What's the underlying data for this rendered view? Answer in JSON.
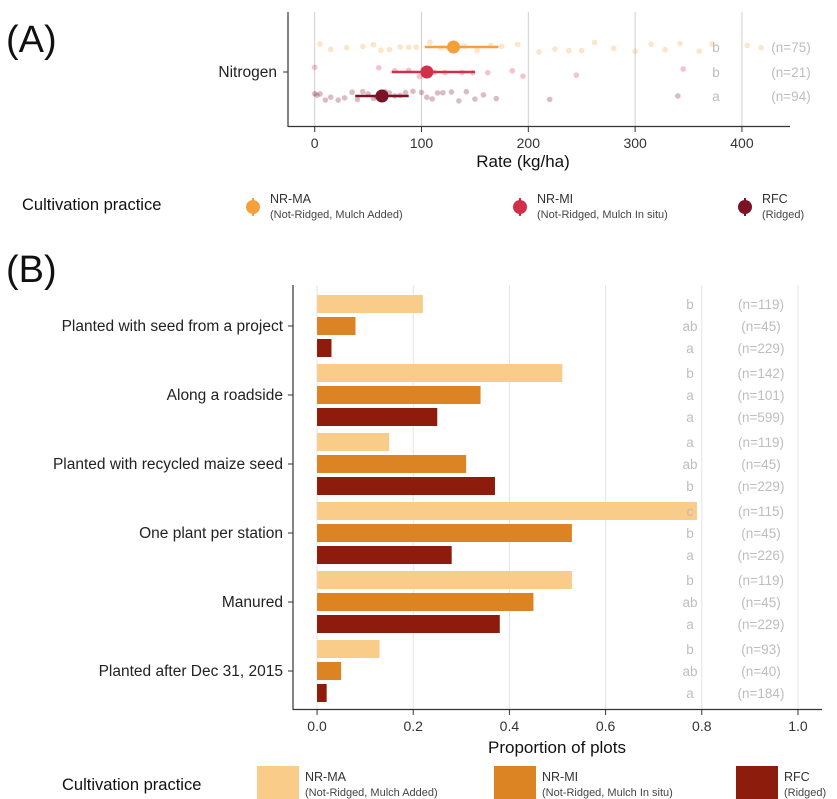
{
  "chart_data": [
    {
      "panel": "(A)",
      "type": "scatter",
      "xlabel": "Rate (kg/ha)",
      "xlim": [
        -25,
        445
      ],
      "xticks": [
        0,
        100,
        200,
        300,
        400
      ],
      "categories": [
        "Nitrogen"
      ],
      "grid": "vertical",
      "series": [
        {
          "name": "NR-MA",
          "color": "#f5a03a",
          "mean": 130,
          "ci": [
            103,
            172
          ],
          "letter": "b",
          "n_label": "(n=75)",
          "points": [
            5,
            15,
            30,
            45,
            55,
            62,
            70,
            80,
            88,
            95,
            108,
            118,
            125,
            140,
            152,
            165,
            175,
            190,
            210,
            225,
            238,
            250,
            262,
            280,
            300,
            315,
            328,
            342,
            360,
            372,
            405,
            418
          ]
        },
        {
          "name": "NR-MI",
          "color": "#d2304a",
          "mean": 105,
          "ci": [
            72,
            150
          ],
          "letter": "b",
          "n_label": "(n=21)",
          "points": [
            0,
            60,
            75,
            88,
            98,
            112,
            122,
            138,
            148,
            162,
            185,
            195,
            245,
            345
          ]
        },
        {
          "name": "RFC",
          "color": "#7b1226",
          "mean": 63,
          "ci": [
            38,
            88
          ],
          "letter": "a",
          "n_label": "(n=94)",
          "points": [
            0,
            2,
            5,
            10,
            15,
            22,
            28,
            35,
            40,
            45,
            50,
            55,
            58,
            62,
            66,
            70,
            75,
            80,
            85,
            92,
            100,
            105,
            110,
            115,
            120,
            128,
            135,
            142,
            150,
            158,
            170,
            220,
            340
          ]
        }
      ],
      "legend": {
        "title": "Cultivation practice",
        "position": "bottom",
        "items": [
          {
            "label": "NR-MA",
            "sub": "(Not-Ridged, Mulch Added)",
            "color": "#f5a03a"
          },
          {
            "label": "NR-MI",
            "sub": "(Not-Ridged, Mulch In situ)",
            "color": "#d2304a"
          },
          {
            "label": "RFC",
            "sub": "(Ridged)",
            "color": "#7b1226"
          }
        ]
      }
    },
    {
      "panel": "(B)",
      "type": "bar",
      "orientation": "horizontal",
      "xlabel": "Proportion of plots",
      "xlim": [
        -0.05,
        1.05
      ],
      "xticks": [
        "0.0",
        "0.2",
        "0.4",
        "0.6",
        "0.8",
        "1.0"
      ],
      "grid": "vertical",
      "categories": [
        "Planted with seed from a project",
        "Along a roadside",
        "Planted with recycled maize seed",
        "One plant per station",
        "Manured",
        "Planted after Dec 31, 2015"
      ],
      "series": [
        {
          "name": "NR-MA",
          "color": "#f9cc89",
          "values": [
            0.22,
            0.51,
            0.15,
            0.79,
            0.53,
            0.13
          ],
          "letters": [
            "b",
            "b",
            "a",
            "c",
            "b",
            "b"
          ],
          "n_labels": [
            "(n=119)",
            "(n=142)",
            "(n=119)",
            "(n=115)",
            "(n=119)",
            "(n=93)"
          ]
        },
        {
          "name": "NR-MI",
          "color": "#dc8424",
          "values": [
            0.08,
            0.34,
            0.31,
            0.53,
            0.45,
            0.05
          ],
          "letters": [
            "ab",
            "a",
            "ab",
            "b",
            "ab",
            "ab"
          ],
          "n_labels": [
            "(n=45)",
            "(n=101)",
            "(n=45)",
            "(n=45)",
            "(n=45)",
            "(n=40)"
          ]
        },
        {
          "name": "RFC",
          "color": "#8e1c0c",
          "values": [
            0.03,
            0.25,
            0.37,
            0.28,
            0.38,
            0.02
          ],
          "letters": [
            "a",
            "a",
            "b",
            "a",
            "a",
            "a"
          ],
          "n_labels": [
            "(n=229)",
            "(n=599)",
            "(n=229)",
            "(n=226)",
            "(n=229)",
            "(n=184)"
          ]
        }
      ],
      "legend": {
        "title": "Cultivation practice",
        "position": "bottom",
        "items": [
          {
            "label": "NR-MA",
            "sub": "(Not-Ridged, Mulch Added)",
            "color": "#f9cc89"
          },
          {
            "label": "NR-MI",
            "sub": "(Not-Ridged, Mulch In situ)",
            "color": "#dc8424"
          },
          {
            "label": "RFC",
            "sub": "(Ridged)",
            "color": "#8e1c0c"
          }
        ]
      }
    }
  ]
}
